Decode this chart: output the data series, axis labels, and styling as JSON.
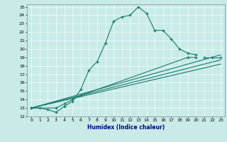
{
  "xlabel": "Humidex (Indice chaleur)",
  "xlim": [
    -0.5,
    23.5
  ],
  "ylim": [
    12,
    25.3
  ],
  "xticks": [
    0,
    1,
    2,
    3,
    4,
    5,
    6,
    7,
    8,
    9,
    10,
    11,
    12,
    13,
    14,
    15,
    16,
    17,
    18,
    19,
    20,
    21,
    22,
    23
  ],
  "yticks": [
    12,
    13,
    14,
    15,
    16,
    17,
    18,
    19,
    20,
    21,
    22,
    23,
    24,
    25
  ],
  "bg_color": "#c8ebe8",
  "line_color": "#1a7a6a",
  "line1_x": [
    0,
    1,
    2,
    3,
    4,
    5,
    6,
    7,
    8,
    9,
    10,
    11,
    12,
    13,
    14,
    15,
    16,
    17,
    18,
    19,
    20
  ],
  "line1_y": [
    13.0,
    13.0,
    12.8,
    12.5,
    13.2,
    13.8,
    15.2,
    17.5,
    18.5,
    20.7,
    23.3,
    23.8,
    24.0,
    25.0,
    24.2,
    22.2,
    22.2,
    21.2,
    20.0,
    19.5,
    19.3
  ],
  "line2_x": [
    0,
    3,
    4,
    5,
    6,
    19,
    20,
    21,
    22,
    23
  ],
  "line2_y": [
    13.0,
    13.0,
    13.5,
    14.0,
    14.5,
    19.0,
    19.0,
    19.0,
    19.0,
    19.0
  ],
  "line2_break": 6,
  "line3_x": [
    0,
    23
  ],
  "line3_y": [
    13.0,
    19.3
  ],
  "line4_x": [
    0,
    23
  ],
  "line4_y": [
    13.0,
    18.7
  ],
  "line5_x": [
    0,
    23
  ],
  "line5_y": [
    13.0,
    18.2
  ],
  "xlabel_color": "#00008b",
  "tick_color": "#000000",
  "grid_color": "#ffffff",
  "spine_color": "#888888"
}
